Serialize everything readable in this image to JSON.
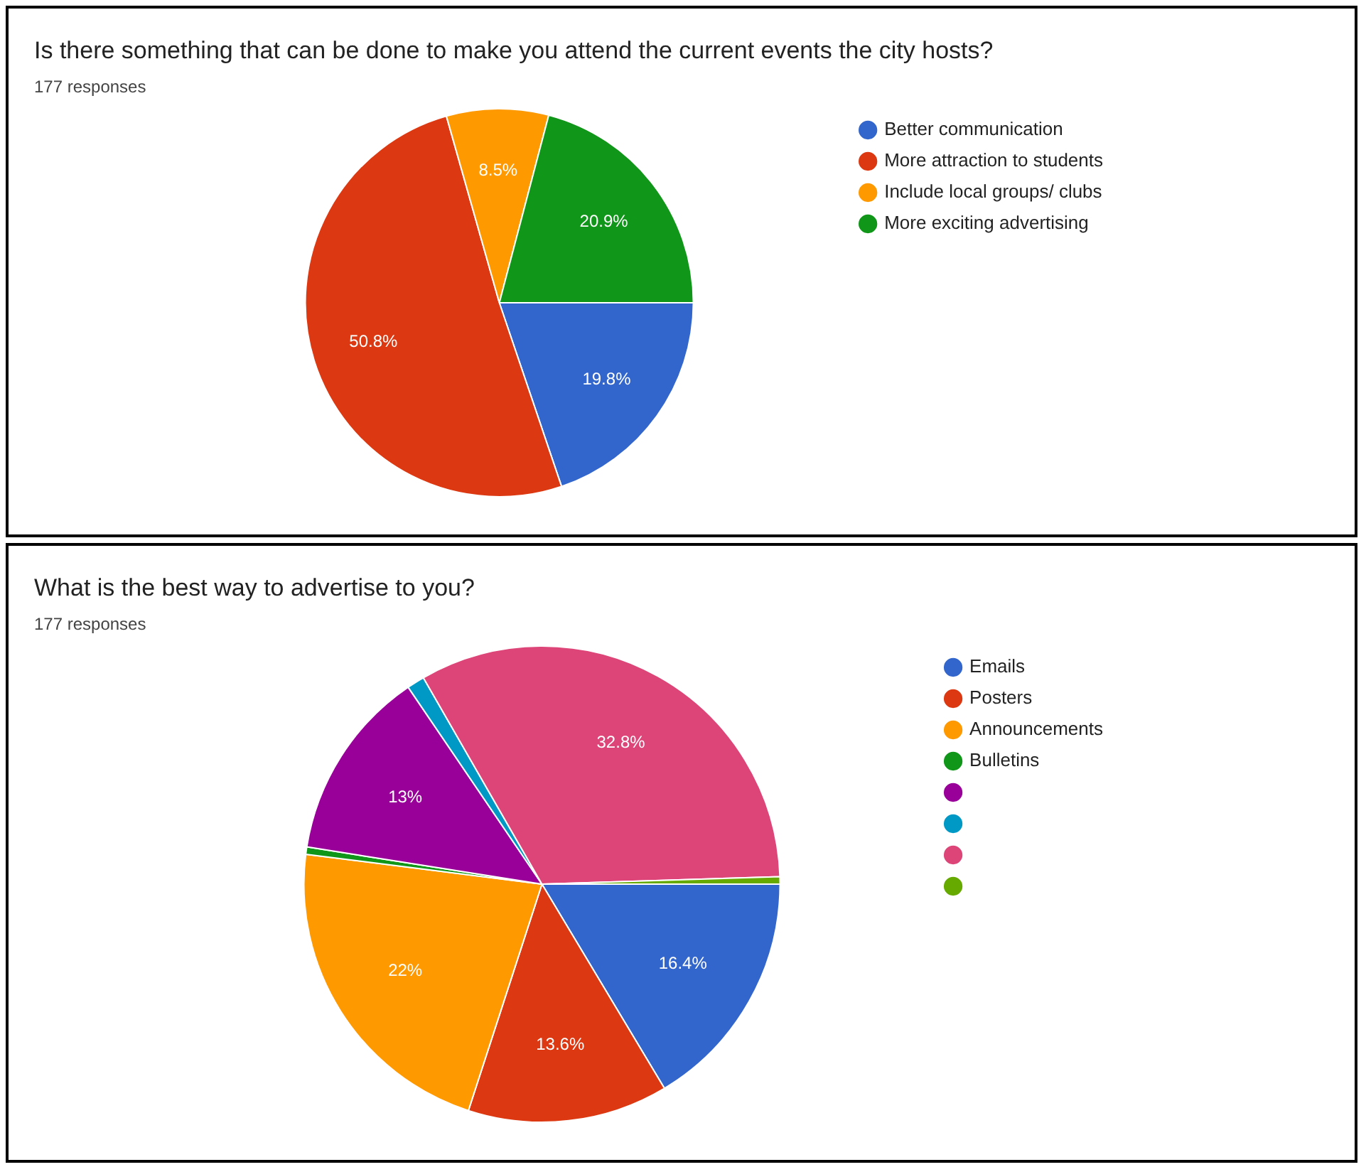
{
  "chart_data": [
    {
      "type": "pie",
      "title": "Is there something that can be done to make you attend the current events the city hosts?",
      "subtitle": "177 responses",
      "categories": [
        "Better communication",
        "More attraction to students",
        "Include local groups/ clubs",
        "More exciting advertising"
      ],
      "values": [
        19.8,
        50.8,
        8.5,
        20.9
      ],
      "colors": [
        "#3366cc",
        "#dc3912",
        "#ff9900",
        "#109618"
      ],
      "value_labels": [
        "19.8%",
        "50.8%",
        "8.5%",
        "20.9%"
      ],
      "legend": "right"
    },
    {
      "type": "pie",
      "title": "What is the best way to advertise to you?",
      "subtitle": "177 responses",
      "categories": [
        "Emails",
        "Posters",
        "Announcements",
        "Bulletins",
        null,
        null,
        null,
        null
      ],
      "values": [
        16.4,
        13.6,
        22,
        0.5,
        13,
        1.2,
        32.8,
        0.5
      ],
      "colors": [
        "#3366cc",
        "#dc3912",
        "#ff9900",
        "#109618",
        "#990099",
        "#0099c6",
        "#dd4477",
        "#66aa00"
      ],
      "value_labels": [
        "16.4%",
        "13.6%",
        "22%",
        null,
        "13%",
        null,
        "32.8%",
        null
      ],
      "legend": "right"
    }
  ]
}
